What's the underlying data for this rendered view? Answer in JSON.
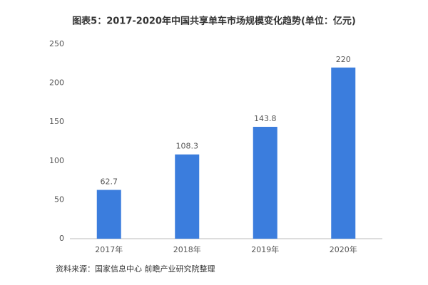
{
  "chart_data": {
    "type": "bar",
    "title": "图表5：2017-2020年中国共享单车市场规模变化趋势(单位：亿元)",
    "categories": [
      "2017年",
      "2018年",
      "2019年",
      "2020年"
    ],
    "values": [
      62.7,
      108.3,
      143.8,
      220
    ],
    "color": "#3b7ddd",
    "ylim": [
      0,
      250
    ],
    "yticks": [
      0,
      50,
      100,
      150,
      200,
      250
    ],
    "grid": false,
    "source": "资料来源：国家信息中心 前瞻产业研究院整理"
  }
}
